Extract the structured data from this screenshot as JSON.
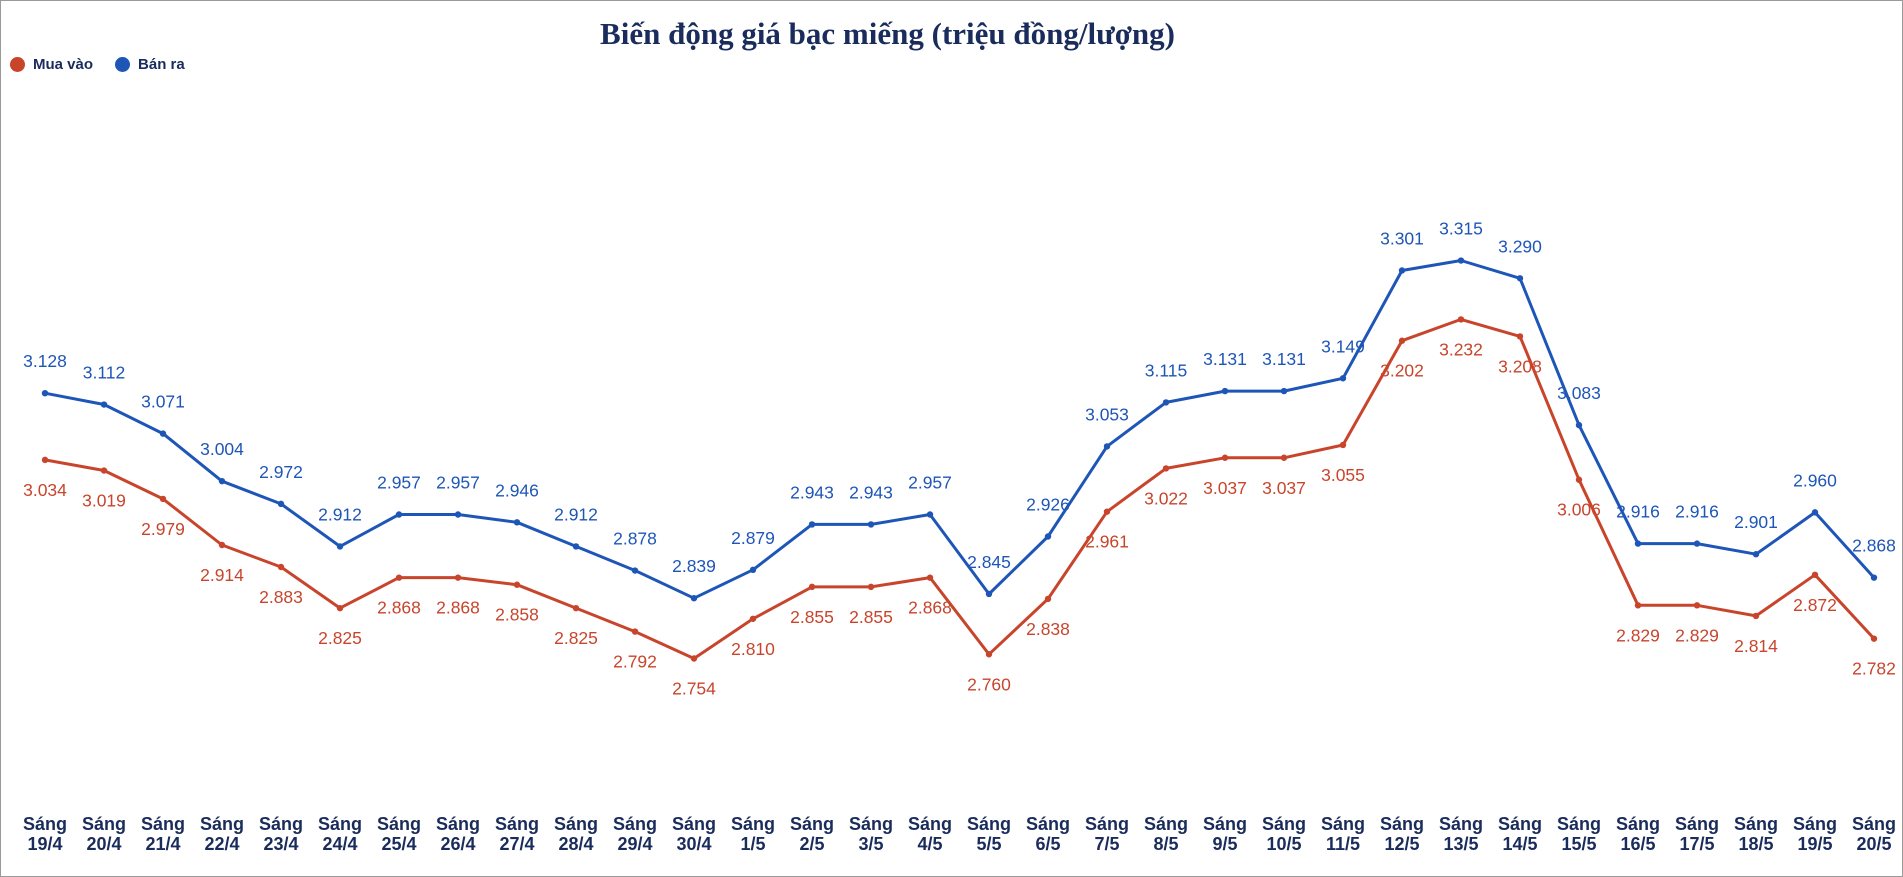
{
  "chart_data": {
    "type": "line",
    "title": "Biến động giá bạc miếng (triệu đồng/lượng)",
    "xlabel": "",
    "ylabel": "",
    "legend_position": "top-left",
    "grid": false,
    "ylim": [
      2.0,
      3.5
    ],
    "categories": [
      [
        "Sáng",
        "19/4"
      ],
      [
        "Sáng",
        "20/4"
      ],
      [
        "Sáng",
        "21/4"
      ],
      [
        "Sáng",
        "22/4"
      ],
      [
        "Sáng",
        "23/4"
      ],
      [
        "Sáng",
        "24/4"
      ],
      [
        "Sáng",
        "25/4"
      ],
      [
        "Sáng",
        "26/4"
      ],
      [
        "Sáng",
        "27/4"
      ],
      [
        "Sáng",
        "28/4"
      ],
      [
        "Sáng",
        "29/4"
      ],
      [
        "Sáng",
        "30/4"
      ],
      [
        "Sáng",
        "1/5"
      ],
      [
        "Sáng",
        "2/5"
      ],
      [
        "Sáng",
        "3/5"
      ],
      [
        "Sáng",
        "4/5"
      ],
      [
        "Sáng",
        "5/5"
      ],
      [
        "Sáng",
        "6/5"
      ],
      [
        "Sáng",
        "7/5"
      ],
      [
        "Sáng",
        "8/5"
      ],
      [
        "Sáng",
        "9/5"
      ],
      [
        "Sáng",
        "10/5"
      ],
      [
        "Sáng",
        "11/5"
      ],
      [
        "Sáng",
        "12/5"
      ],
      [
        "Sáng",
        "13/5"
      ],
      [
        "Sáng",
        "14/5"
      ],
      [
        "Sáng",
        "15/5"
      ],
      [
        "Sáng",
        "16/5"
      ],
      [
        "Sáng",
        "17/5"
      ],
      [
        "Sáng",
        "18/5"
      ],
      [
        "Sáng",
        "19/5"
      ],
      [
        "Sáng",
        "20/5"
      ]
    ],
    "series": [
      {
        "name": "Mua vào",
        "color": "#c8452c",
        "values": [
          3.034,
          3.019,
          2.979,
          2.914,
          2.883,
          2.825,
          2.868,
          2.868,
          2.858,
          2.825,
          2.792,
          2.754,
          2.81,
          2.855,
          2.855,
          2.868,
          2.76,
          2.838,
          2.961,
          3.022,
          3.037,
          3.037,
          3.055,
          3.202,
          3.232,
          3.208,
          3.006,
          2.829,
          2.829,
          2.814,
          2.872,
          2.782
        ],
        "labels": [
          "3.034",
          "3.019",
          "2.979",
          "2.914",
          "2.883",
          "2.825",
          "2.868",
          "2.868",
          "2.858",
          "2.825",
          "2.792",
          "2.754",
          "2.810",
          "2.855",
          "2.855",
          "2.868",
          "2.760",
          "2.838",
          "2.961",
          "3.022",
          "3.037",
          "3.037",
          "3.055",
          "3.202",
          "3.232",
          "3.208",
          "3.006",
          "2.829",
          "2.829",
          "2.814",
          "2.872",
          "2.782"
        ]
      },
      {
        "name": "Bán ra",
        "color": "#1e56b8",
        "values": [
          3.128,
          3.112,
          3.071,
          3.004,
          2.972,
          2.912,
          2.957,
          2.957,
          2.946,
          2.912,
          2.878,
          2.839,
          2.879,
          2.943,
          2.943,
          2.957,
          2.845,
          2.926,
          3.053,
          3.115,
          3.131,
          3.131,
          3.149,
          3.301,
          3.315,
          3.29,
          3.083,
          2.916,
          2.916,
          2.901,
          2.96,
          2.868
        ],
        "labels": [
          "3.128",
          "3.112",
          "3.071",
          "3.004",
          "2.972",
          "2.912",
          "2.957",
          "2.957",
          "2.946",
          "2.912",
          "2.878",
          "2.839",
          "2.879",
          "2.943",
          "2.943",
          "2.957",
          "2.845",
          "2.926",
          "3.053",
          "3.115",
          "3.131",
          "3.131",
          "3.149",
          "3.301",
          "3.315",
          "3.290",
          "3.083",
          "2.916",
          "2.916",
          "2.901",
          "2.960",
          "2.868"
        ]
      }
    ]
  }
}
